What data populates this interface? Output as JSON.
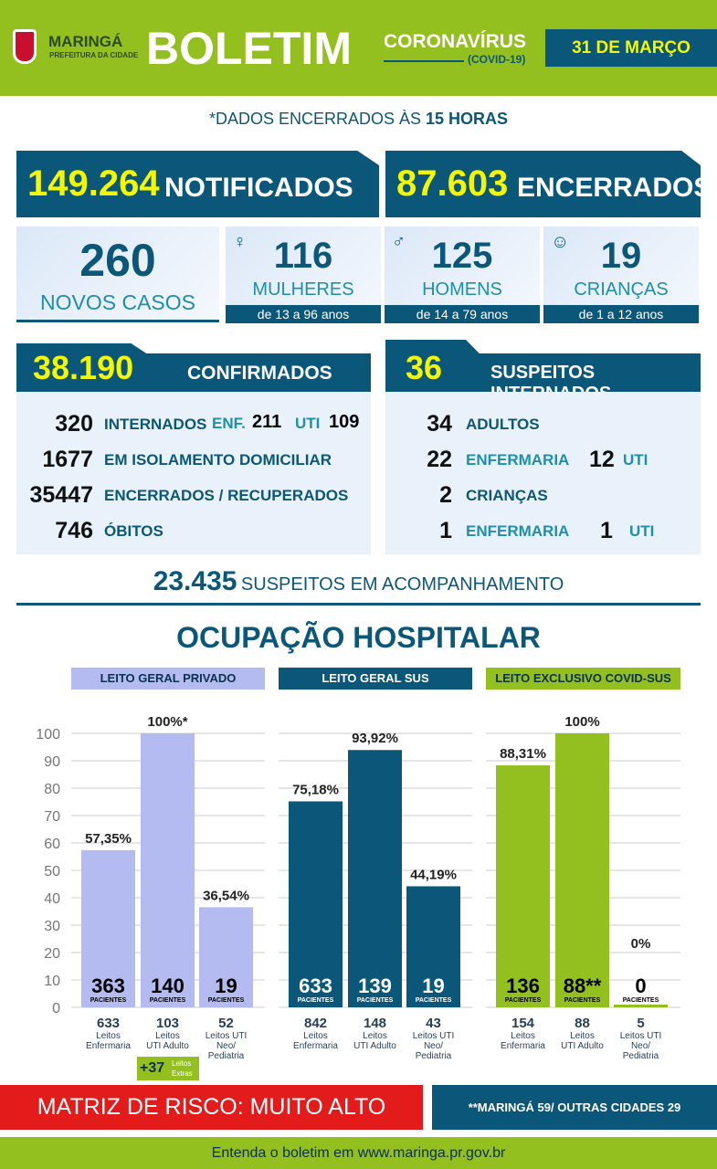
{
  "header": {
    "city": "MARINGÁ",
    "city_sub": "PREFEITURA DA CIDADE",
    "title": "BOLETIM",
    "subtitle": "CORONAVÍRUS",
    "subtitle2": "(COVID-19)",
    "date": "31 DE MARÇO"
  },
  "note": {
    "prefix": "*DADOS ENCERRADOS ÀS",
    "bold": "15 HORAS"
  },
  "totals": {
    "notified_value": "149.264",
    "notified_label": "NOTIFICADOS",
    "closed_value": "87.603",
    "closed_label": "ENCERRADOS"
  },
  "new_cases": {
    "value": "260",
    "label": "NOVOS CASOS",
    "cards": [
      {
        "icon": "woman-icon",
        "value": "116",
        "label": "MULHERES",
        "range": "de 13 a 96 anos"
      },
      {
        "icon": "man-icon",
        "value": "125",
        "label": "HOMENS",
        "range": "de 14 a 79 anos"
      },
      {
        "icon": "baby-icon",
        "value": "19",
        "label": "CRIANÇAS",
        "range": "de 1 a 12 anos"
      }
    ]
  },
  "confirmed": {
    "value": "38.190",
    "label": "CONFIRMADOS",
    "rows": [
      {
        "value": "320",
        "label": "INTERNADOS",
        "enf_label": "ENF.",
        "enf": "211",
        "uti_label": "UTI",
        "uti": "109"
      },
      {
        "value": "1677",
        "label": "EM ISOLAMENTO DOMICILIAR"
      },
      {
        "value": "35447",
        "label": "ENCERRADOS / RECUPERADOS"
      },
      {
        "value": "746",
        "label": "ÓBITOS"
      }
    ]
  },
  "suspects": {
    "value": "36",
    "label": "SUSPEITOS INTERNADOS",
    "rows": [
      {
        "value": "34",
        "label": "ADULTOS"
      },
      {
        "value": "22",
        "label": "ENFERMARIA",
        "uti": "12",
        "uti_label": "UTI"
      },
      {
        "value": "2",
        "label": "CRIANÇAS"
      },
      {
        "value": "1",
        "label": "ENFERMARIA",
        "uti": "1",
        "uti_label": "UTI"
      }
    ]
  },
  "monitoring": {
    "value": "23.435",
    "label": "SUSPEITOS EM ACOMPANHAMENTO"
  },
  "occupancy_title": "OCUPAÇÃO HOSPITALAR",
  "chart_data": {
    "type": "bar",
    "ylim": [
      0,
      100
    ],
    "yticks": [
      0,
      10,
      20,
      30,
      40,
      50,
      60,
      70,
      80,
      90,
      100
    ],
    "grid": true,
    "patients_label": "PACIENTES",
    "groups": [
      {
        "name": "LEITO GERAL PRIVADO",
        "color": "#b3bbf0",
        "text_color": "#000000",
        "categories": [
          "Leitos Enfermaria",
          "Leitos UTI Adulto",
          "Leitos UTI Neo/ Pediatria"
        ],
        "values": [
          57.35,
          100,
          36.54
        ],
        "labels": [
          "57,35%",
          "100%*",
          "36,54%"
        ],
        "patients": [
          "363",
          "140",
          "19"
        ],
        "beds": [
          "633",
          "103",
          "52"
        ]
      },
      {
        "name": "LEITO GERAL SUS",
        "color": "#0b577a",
        "text_color": "#ffffff",
        "categories": [
          "Leitos Enfermaria",
          "Leitos UTI Adulto",
          "Leitos UTI Neo/ Pediatria"
        ],
        "values": [
          75.18,
          93.92,
          44.19
        ],
        "labels": [
          "75,18%",
          "93,92%",
          "44,19%"
        ],
        "patients": [
          "633",
          "139",
          "19"
        ],
        "beds": [
          "842",
          "148",
          "43"
        ]
      },
      {
        "name": "LEITO EXCLUSIVO COVID-SUS",
        "color": "#93c01f",
        "text_color": "#000000",
        "categories": [
          "Leitos Enfermaria",
          "Leitos UTI Adulto",
          "Leitos UTI Neo/ Pediatria"
        ],
        "values": [
          88.31,
          100,
          0
        ],
        "labels": [
          "88,31%",
          "100%",
          "0%"
        ],
        "patients": [
          "136",
          "88**",
          "0"
        ],
        "beds": [
          "154",
          "88",
          "5"
        ]
      }
    ],
    "extra_beds": {
      "value": "+37",
      "label": "Leitos Extras"
    }
  },
  "footer": {
    "risk": "MATRIZ DE RISCO: MUITO ALTO",
    "origin": "**MARINGÁ 59/ OUTRAS CIDADES 29",
    "site": "Entenda o boletim em www.maringa.pr.gov.br"
  }
}
